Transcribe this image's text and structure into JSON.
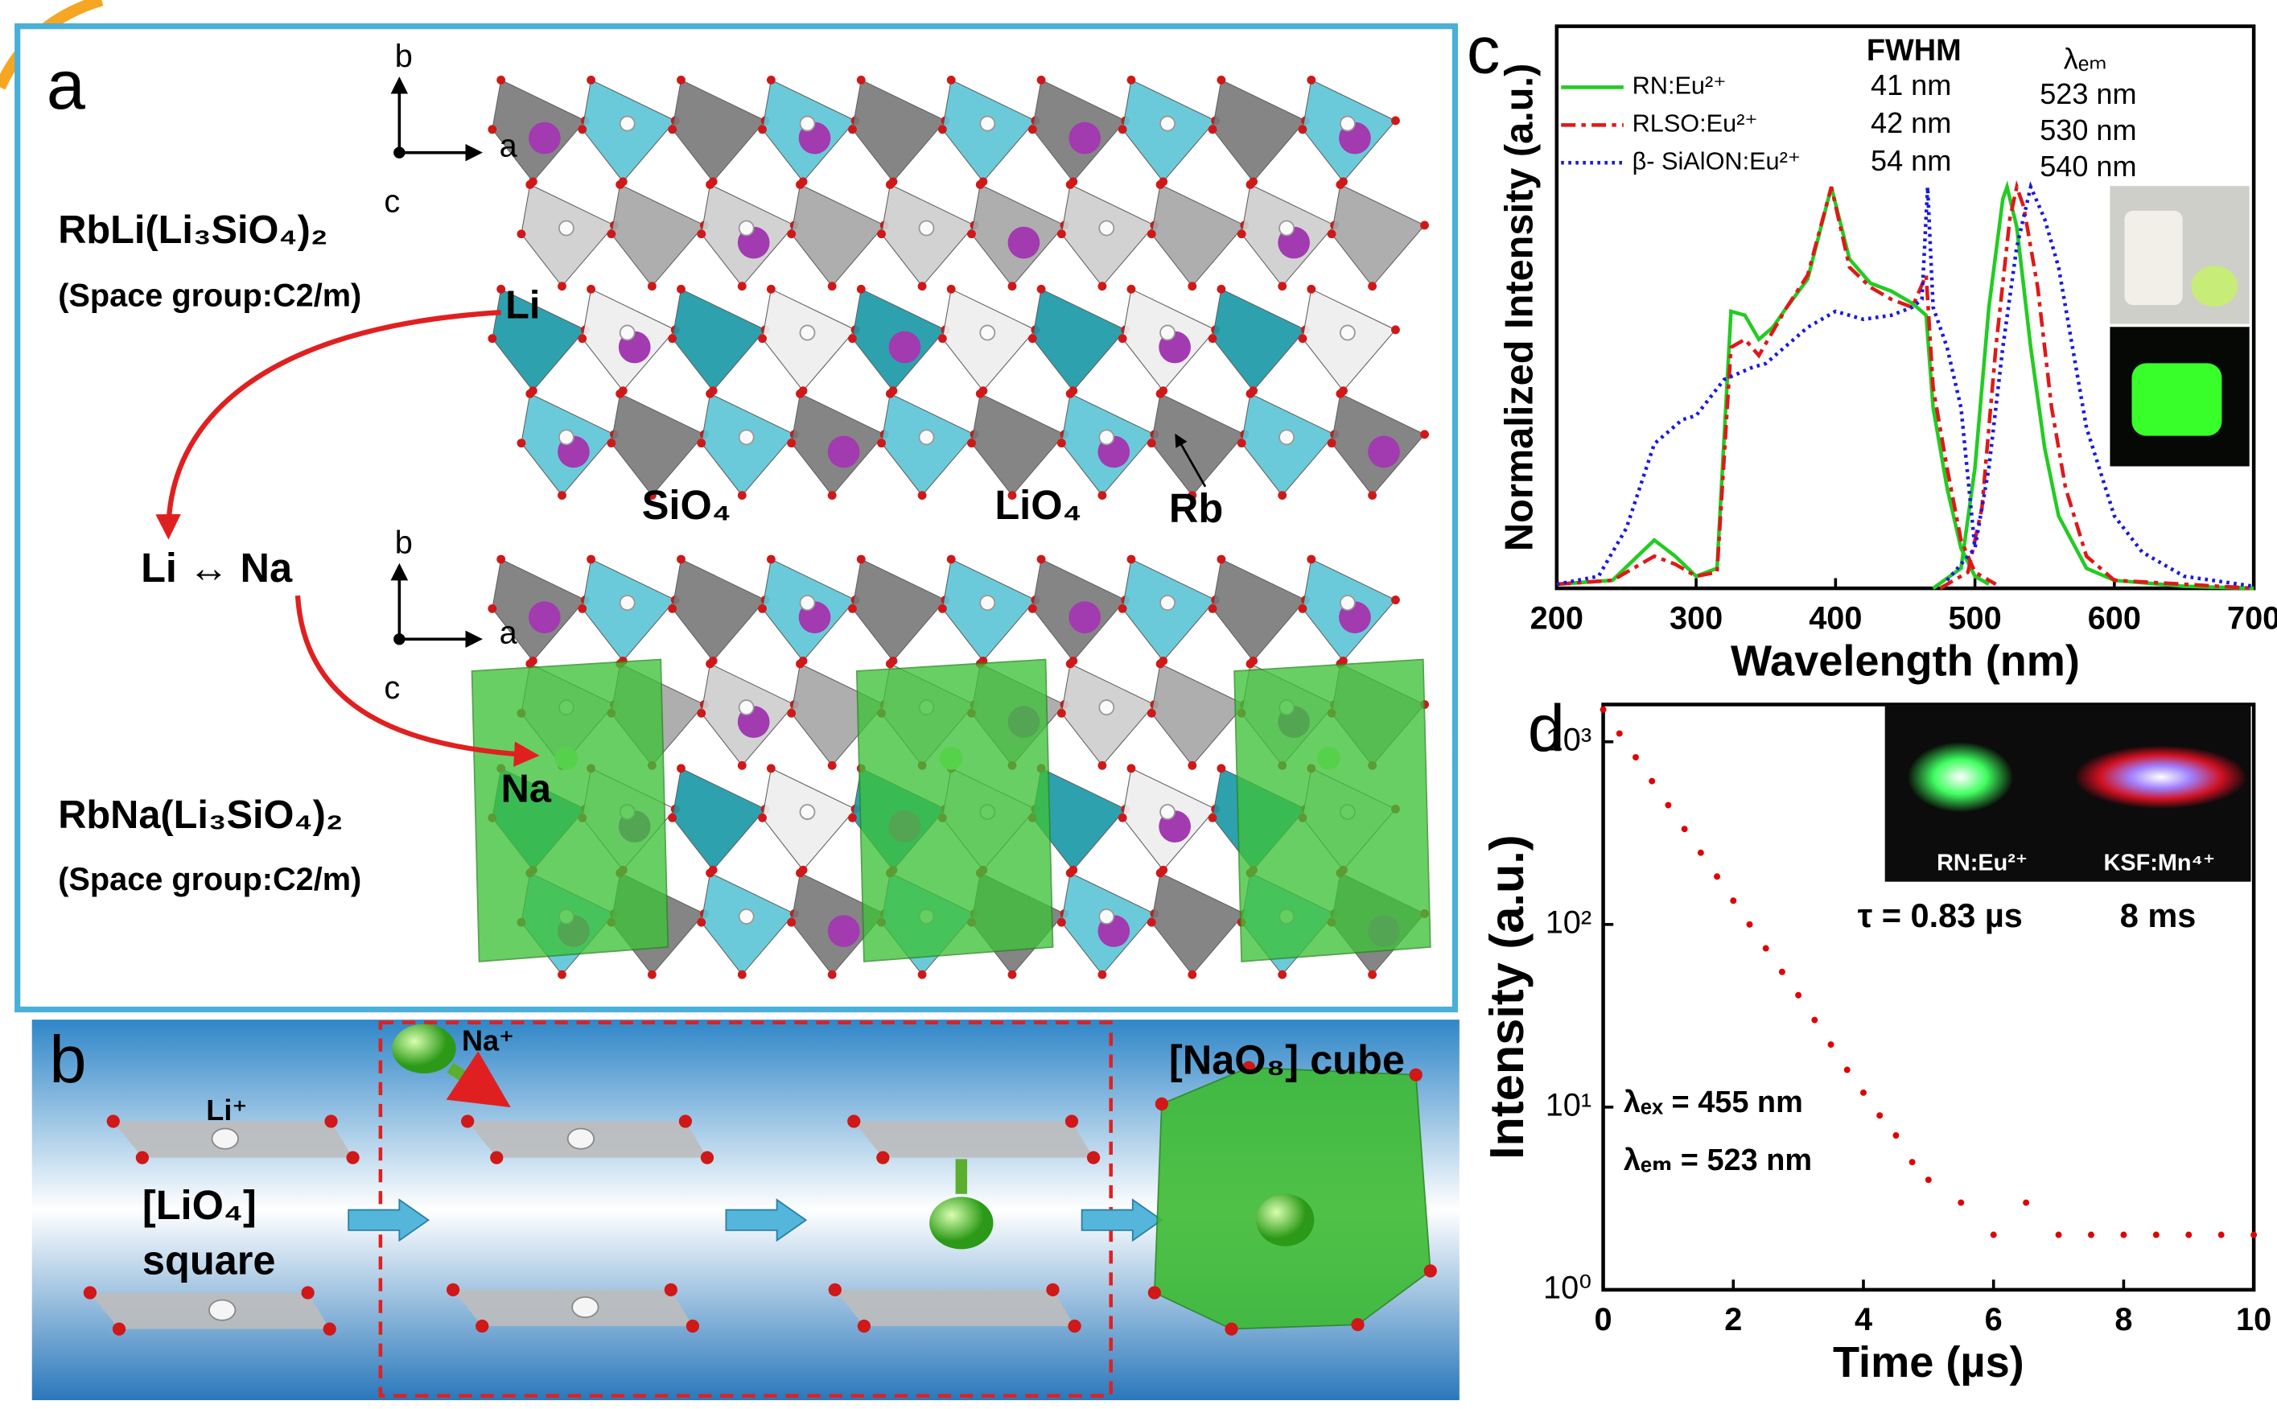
{
  "panel_a": {
    "label": "a",
    "axes_top": [
      "b",
      "a",
      "c"
    ],
    "axes_bottom": [
      "b",
      "a",
      "c"
    ],
    "formula_li": "RbLi(Li₃SiO₄)₂",
    "space_group_li": "(Space group:C2/m)",
    "li_label": "Li",
    "exchange": "Li ↔ Na",
    "na_label": "Na",
    "formula_na": "RbNa(Li₃SiO₄)₂",
    "space_group_na": "(Space group:C2/m)",
    "sio4": "SiO₄",
    "lio4": "LiO₄",
    "rb": "Rb"
  },
  "panel_b": {
    "label": "b",
    "li_ion": "Li⁺",
    "na_ion": "Na⁺",
    "lio4": "[LiO₄]",
    "square": "square",
    "nao8": "[NaO₈] cube"
  },
  "chart_data": [
    {
      "type": "line",
      "panel_label": "c",
      "xlabel": "Wavelength (nm)",
      "ylabel": "Normalized Intensity (a.u.)",
      "xlim": [
        200,
        700
      ],
      "xticks": [
        200,
        300,
        400,
        500,
        600,
        700
      ],
      "ylim": [
        0,
        1.4
      ],
      "series": [
        {
          "name": "RN:Eu²⁺",
          "color": "#22cc22",
          "dash": "solid",
          "x": [
            200,
            240,
            255,
            270,
            285,
            300,
            315,
            325,
            335,
            345,
            355,
            365,
            380,
            397,
            410,
            425,
            440,
            455,
            465,
            470,
            480,
            490,
            500,
            510,
            null,
            470,
            490,
            500,
            510,
            520,
            523,
            530,
            540,
            550,
            560,
            580,
            600,
            650,
            700
          ],
          "values": [
            0.01,
            0.02,
            0.07,
            0.12,
            0.08,
            0.03,
            0.05,
            0.69,
            0.68,
            0.62,
            0.65,
            0.7,
            0.77,
            1.0,
            0.82,
            0.76,
            0.74,
            0.71,
            0.68,
            0.45,
            0.25,
            0.1,
            0.03,
            0.01,
            null,
            0,
            0.05,
            0.3,
            0.7,
            0.97,
            1.0,
            0.9,
            0.6,
            0.35,
            0.18,
            0.05,
            0.02,
            0.005,
            0
          ]
        },
        {
          "name": "RLSO:Eu²⁺",
          "color": "#e01818",
          "dash": "dashdot",
          "x": [
            200,
            240,
            255,
            270,
            285,
            300,
            315,
            325,
            335,
            345,
            355,
            365,
            380,
            397,
            410,
            425,
            440,
            455,
            465,
            470,
            480,
            490,
            500,
            515,
            null,
            475,
            495,
            505,
            515,
            525,
            530,
            535,
            545,
            555,
            565,
            580,
            600,
            650,
            700
          ],
          "values": [
            0.01,
            0.02,
            0.05,
            0.08,
            0.06,
            0.03,
            0.04,
            0.6,
            0.62,
            0.58,
            0.64,
            0.7,
            0.78,
            1.0,
            0.8,
            0.75,
            0.72,
            0.7,
            0.78,
            0.5,
            0.3,
            0.12,
            0.04,
            0.01,
            null,
            0,
            0.04,
            0.2,
            0.6,
            0.92,
            1.0,
            0.95,
            0.75,
            0.45,
            0.25,
            0.08,
            0.02,
            0.01,
            0
          ]
        },
        {
          "name": "β- SiAlON:Eu²⁺",
          "color": "#1a1ae0",
          "dash": "dotted",
          "x": [
            200,
            230,
            250,
            270,
            290,
            300,
            320,
            340,
            350,
            380,
            400,
            420,
            440,
            455,
            462,
            466,
            470,
            480,
            490,
            500,
            null,
            480,
            500,
            510,
            520,
            530,
            540,
            550,
            560,
            580,
            600,
            620,
            650,
            700
          ],
          "values": [
            0.01,
            0.03,
            0.15,
            0.36,
            0.42,
            0.43,
            0.52,
            0.55,
            0.56,
            0.65,
            0.69,
            0.67,
            0.68,
            0.7,
            0.72,
            1.0,
            0.7,
            0.6,
            0.45,
            0.1,
            null,
            0.02,
            0.1,
            0.3,
            0.6,
            0.85,
            1.0,
            0.92,
            0.8,
            0.4,
            0.18,
            0.09,
            0.03,
            0.005
          ]
        }
      ],
      "fwhm_title": "FWHM",
      "fwhm": [
        "41 nm",
        "42 nm",
        "54 nm"
      ],
      "lambda_title": "λₑₘ",
      "lambda": [
        "523 nm",
        "530 nm",
        "540 nm"
      ]
    },
    {
      "type": "scatter",
      "panel_label": "d",
      "xlabel": "Time (µs)",
      "ylabel": "Intensity (a.u.)",
      "xlim": [
        0,
        10
      ],
      "xticks": [
        0,
        2,
        4,
        6,
        8,
        10
      ],
      "ylim": [
        1,
        1600
      ],
      "yscale": "log",
      "yticks": [
        {
          "value": 1,
          "label": "10⁰"
        },
        {
          "value": 10,
          "label": "10¹"
        },
        {
          "value": 100,
          "label": "10²"
        },
        {
          "value": 1000,
          "label": "10³"
        }
      ],
      "color": "#e00000",
      "x": [
        0,
        0.25,
        0.5,
        0.75,
        1,
        1.25,
        1.5,
        1.75,
        2,
        2.25,
        2.5,
        2.75,
        3,
        3.25,
        3.5,
        3.75,
        4,
        4.25,
        4.5,
        4.75,
        5,
        5.5,
        6,
        6.5,
        7,
        7.5,
        8,
        8.5,
        9,
        9.5,
        10
      ],
      "values": [
        1500,
        1110,
        823,
        609,
        450,
        333,
        247,
        183,
        135,
        100,
        74,
        55,
        41,
        30,
        22,
        16,
        12,
        9,
        7,
        5,
        4,
        3,
        2,
        3,
        2,
        2,
        2,
        2,
        2,
        2,
        2
      ],
      "annotations": [
        "λₑₓ = 455 nm",
        "λₑₘ = 523 nm"
      ],
      "inset_labels": [
        "RN:Eu²⁺",
        "KSF:Mn⁴⁺"
      ],
      "lifetimes": [
        "τ = 0.83 µs",
        "8 ms"
      ]
    }
  ]
}
